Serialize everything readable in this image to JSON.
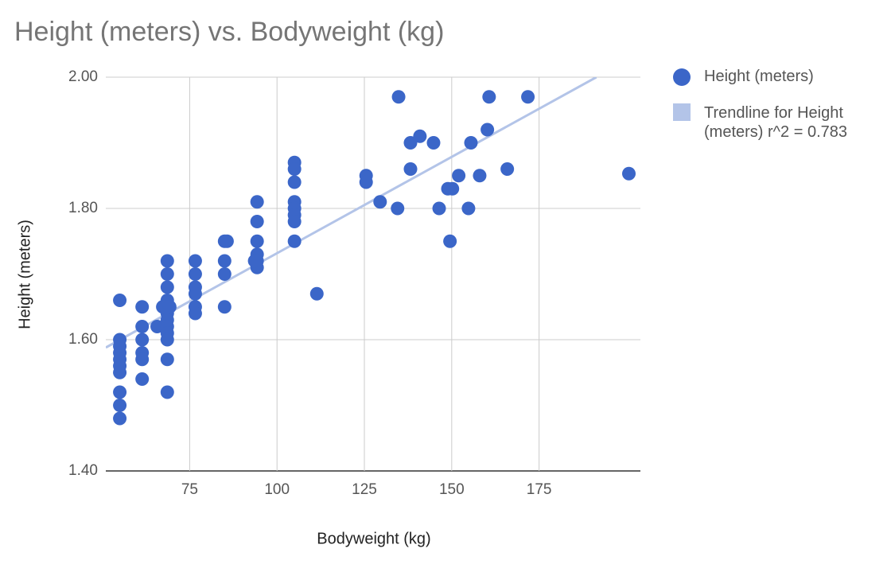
{
  "chart_data": {
    "type": "scatter",
    "title": "Height (meters) vs. Bodyweight (kg)",
    "x_label": "Bodyweight (kg)",
    "y_label": "Height (meters)",
    "xlim": [
      51,
      204
    ],
    "ylim": [
      1.4,
      2.0
    ],
    "xticks": [
      75,
      100,
      125,
      150,
      175
    ],
    "yticks": [
      {
        "value": 1.4,
        "label": "1.40"
      },
      {
        "value": 1.6,
        "label": "1.60"
      },
      {
        "value": 1.8,
        "label": "1.80"
      },
      {
        "value": 2.0,
        "label": "2.00"
      }
    ],
    "grid": true,
    "legend": "right",
    "series": [
      {
        "name": "Height (meters)",
        "color": "#3b66c8",
        "x": [
          55,
          55,
          55,
          55,
          55,
          55,
          55,
          55,
          55,
          55,
          61.4,
          61.4,
          61.4,
          61.4,
          61.4,
          61.4,
          65.7,
          68.6,
          68.6,
          68.6,
          68.6,
          68.6,
          68.6,
          68.6,
          68.6,
          68.6,
          68.6,
          68.6,
          68.6,
          67.3,
          69.3,
          76.6,
          76.6,
          76.6,
          76.6,
          76.6,
          76.6,
          85,
          85,
          85,
          85,
          85.7,
          94.3,
          94.3,
          94.3,
          94.3,
          94.3,
          94.3,
          93.6,
          105,
          105,
          105,
          105,
          105,
          105,
          105,
          105,
          111.4,
          125.5,
          125.5,
          129.5,
          134.5,
          134.8,
          138.2,
          138.2,
          140.9,
          144.8,
          146.4,
          148.9,
          150.2,
          149.5,
          152,
          154.8,
          155.5,
          158,
          160.2,
          160.7,
          165.9,
          171.8,
          200.7
        ],
        "values": [
          1.66,
          1.6,
          1.59,
          1.58,
          1.57,
          1.56,
          1.55,
          1.52,
          1.5,
          1.48,
          1.65,
          1.62,
          1.6,
          1.58,
          1.57,
          1.54,
          1.62,
          1.72,
          1.7,
          1.68,
          1.66,
          1.65,
          1.64,
          1.63,
          1.62,
          1.61,
          1.6,
          1.57,
          1.52,
          1.65,
          1.65,
          1.72,
          1.7,
          1.68,
          1.67,
          1.65,
          1.64,
          1.75,
          1.72,
          1.7,
          1.65,
          1.75,
          1.81,
          1.78,
          1.75,
          1.73,
          1.72,
          1.71,
          1.72,
          1.87,
          1.86,
          1.84,
          1.81,
          1.8,
          1.79,
          1.78,
          1.75,
          1.67,
          1.85,
          1.84,
          1.81,
          1.8,
          1.97,
          1.9,
          1.86,
          1.91,
          1.9,
          1.8,
          1.83,
          1.83,
          1.75,
          1.85,
          1.8,
          1.9,
          1.85,
          1.92,
          1.97,
          1.86,
          1.97,
          1.853
        ]
      },
      {
        "name": "Trendline for Height (meters) r^2 = 0.783",
        "color": "#b3c4e8",
        "x": [
          51,
          191.4
        ],
        "values": [
          1.588,
          2.0
        ]
      }
    ]
  }
}
